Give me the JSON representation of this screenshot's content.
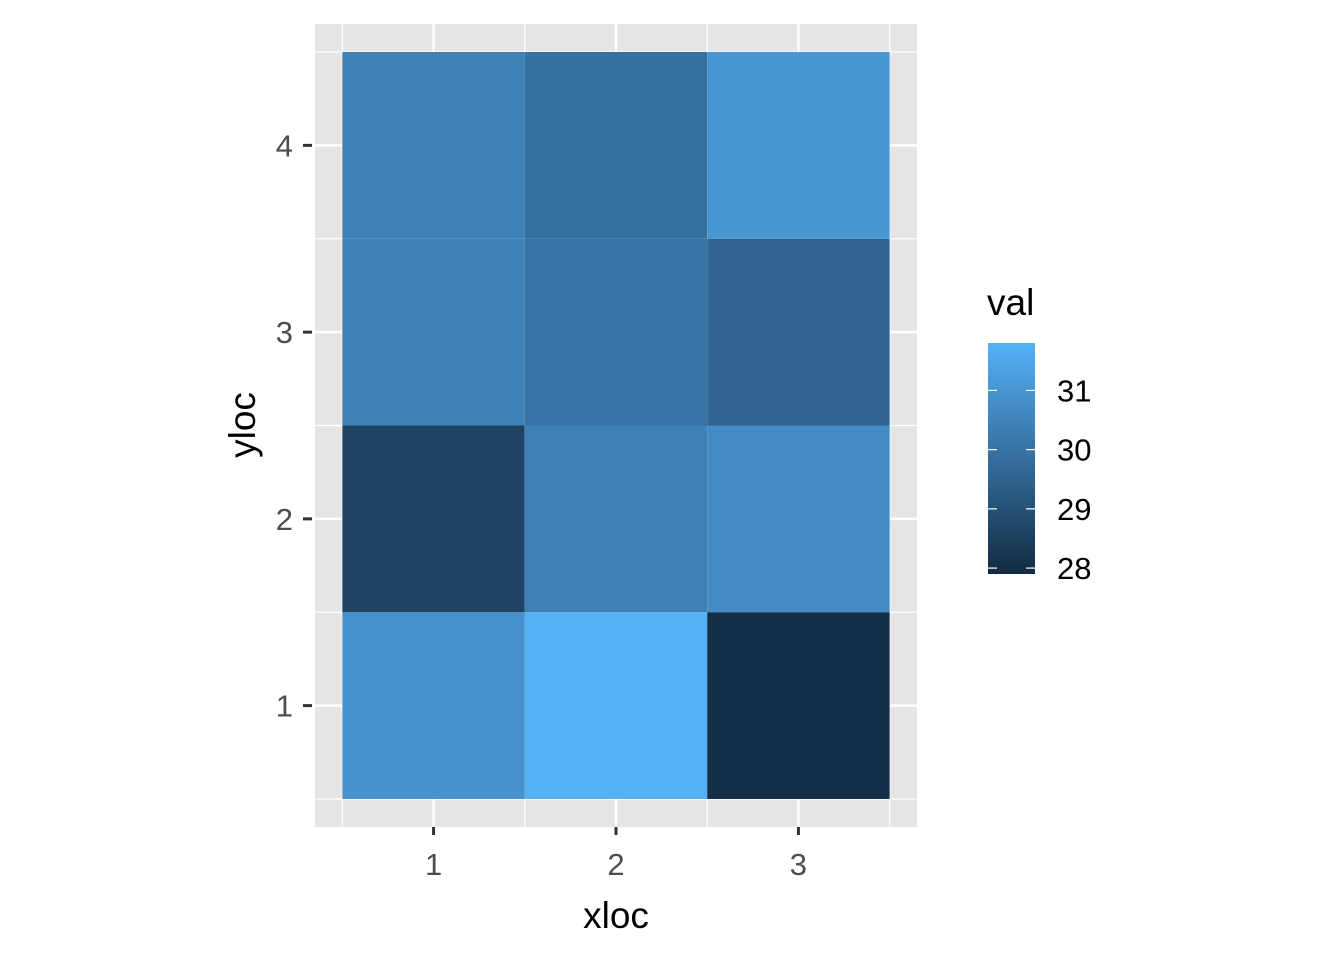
{
  "chart_data": {
    "type": "heatmap",
    "x": [
      1,
      2,
      3
    ],
    "y": [
      1,
      2,
      3,
      4
    ],
    "xlabel": "xloc",
    "ylabel": "yloc",
    "xticks": [
      "1",
      "2",
      "3"
    ],
    "yticks": [
      "1",
      "2",
      "3",
      "4"
    ],
    "cells": [
      {
        "x": 1,
        "y": 1,
        "val": 30.9
      },
      {
        "x": 2,
        "y": 1,
        "val": 31.8
      },
      {
        "x": 3,
        "y": 1,
        "val": 28.0
      },
      {
        "x": 1,
        "y": 2,
        "val": 28.6
      },
      {
        "x": 2,
        "y": 2,
        "val": 30.4
      },
      {
        "x": 3,
        "y": 2,
        "val": 30.7
      },
      {
        "x": 1,
        "y": 3,
        "val": 30.4
      },
      {
        "x": 2,
        "y": 3,
        "val": 30.0
      },
      {
        "x": 3,
        "y": 3,
        "val": 29.6
      },
      {
        "x": 1,
        "y": 4,
        "val": 30.4
      },
      {
        "x": 2,
        "y": 4,
        "val": 29.9
      },
      {
        "x": 3,
        "y": 4,
        "val": 31.0
      }
    ],
    "legend": {
      "title": "val",
      "ticks": [
        31,
        30,
        29,
        28
      ],
      "tick_labels": [
        "31",
        "30",
        "29",
        "28"
      ],
      "range": [
        27.9,
        31.8
      ],
      "low_color": "#132B43",
      "high_color": "#56B1F7",
      "placement": "right"
    },
    "panel_background": "#e5e5e5",
    "grid": true,
    "grid_color": "#ffffff"
  }
}
